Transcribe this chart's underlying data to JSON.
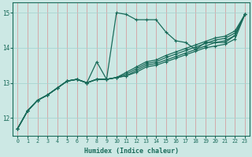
{
  "xlabel": "Humidex (Indice chaleur)",
  "bg_color": "#cce8e4",
  "line_color": "#1a6b5a",
  "grid_color_v": "#d4a0a0",
  "grid_color_h": "#a8d4d0",
  "xlim": [
    -0.5,
    23.5
  ],
  "ylim": [
    11.5,
    15.3
  ],
  "yticks": [
    12,
    13,
    14,
    15
  ],
  "xticks": [
    0,
    1,
    2,
    3,
    4,
    5,
    6,
    7,
    8,
    9,
    10,
    11,
    12,
    13,
    14,
    15,
    16,
    17,
    18,
    19,
    20,
    21,
    22,
    23
  ],
  "series": [
    [
      11.7,
      12.2,
      12.5,
      12.65,
      12.85,
      13.05,
      13.1,
      13.0,
      13.6,
      13.1,
      15.0,
      14.95,
      14.8,
      14.8,
      14.8,
      14.45,
      14.2,
      14.15,
      13.95,
      14.15,
      14.15,
      14.15,
      14.35,
      14.95
    ],
    [
      11.7,
      12.2,
      12.5,
      12.65,
      12.85,
      13.05,
      13.1,
      13.0,
      13.1,
      13.1,
      13.15,
      13.2,
      13.3,
      13.45,
      13.5,
      13.6,
      13.7,
      13.8,
      13.9,
      14.0,
      14.05,
      14.1,
      14.25,
      14.95
    ],
    [
      11.7,
      12.2,
      12.5,
      12.65,
      12.85,
      13.05,
      13.1,
      13.0,
      13.1,
      13.1,
      13.15,
      13.2,
      13.35,
      13.5,
      13.55,
      13.65,
      13.75,
      13.85,
      13.95,
      14.05,
      14.15,
      14.2,
      14.35,
      14.95
    ],
    [
      11.7,
      12.2,
      12.5,
      12.65,
      12.85,
      13.05,
      13.1,
      13.0,
      13.1,
      13.1,
      13.15,
      13.25,
      13.4,
      13.55,
      13.6,
      13.72,
      13.82,
      13.92,
      14.02,
      14.12,
      14.22,
      14.27,
      14.42,
      14.95
    ],
    [
      11.7,
      12.2,
      12.5,
      12.65,
      12.85,
      13.05,
      13.1,
      13.0,
      13.1,
      13.1,
      13.15,
      13.3,
      13.45,
      13.6,
      13.65,
      13.78,
      13.88,
      13.98,
      14.08,
      14.18,
      14.28,
      14.33,
      14.48,
      14.95
    ]
  ]
}
